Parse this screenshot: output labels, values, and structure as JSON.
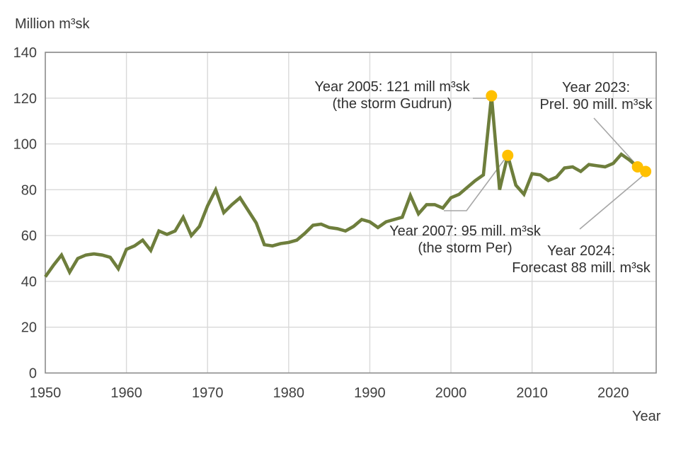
{
  "title": "Million m³sk",
  "x_axis_title": "Year",
  "annotations": {
    "a2005": {
      "line1": "Year 2005: 121 mill m³sk",
      "line2": "(the storm Gudrun)"
    },
    "a2023": {
      "line1": "Year 2023:",
      "line2": "Prel. 90 mill. m³sk"
    },
    "a2007": {
      "line1": "Year 2007: 95 mill. m³sk",
      "line2": "(the storm Per)"
    },
    "a2024": {
      "line1": "Year 2024:",
      "line2": "Forecast 88 mill. m³sk"
    }
  },
  "colors": {
    "line": "#6E7E3C",
    "marker": "#FFC000",
    "grid": "#D9D9D9",
    "border": "#8C8C8C",
    "leader": "#A6A6A6",
    "text": "#404040"
  },
  "chart_data": {
    "type": "line",
    "title": "Million m³sk",
    "xlabel": "Year",
    "ylabel": "Million m³sk",
    "grid": true,
    "x_range": [
      1950,
      2025.3
    ],
    "y_range": [
      0,
      140
    ],
    "x_ticks": [
      1950,
      1960,
      1970,
      1980,
      1990,
      2000,
      2010,
      2020
    ],
    "y_ticks": [
      0,
      20,
      40,
      60,
      80,
      100,
      120,
      140
    ],
    "x": [
      1950,
      1951,
      1952,
      1953,
      1954,
      1955,
      1956,
      1957,
      1958,
      1959,
      1960,
      1961,
      1962,
      1963,
      1964,
      1965,
      1966,
      1967,
      1968,
      1969,
      1970,
      1971,
      1972,
      1973,
      1974,
      1975,
      1976,
      1977,
      1978,
      1979,
      1980,
      1981,
      1982,
      1983,
      1984,
      1985,
      1986,
      1987,
      1988,
      1989,
      1990,
      1991,
      1992,
      1993,
      1994,
      1995,
      1996,
      1997,
      1998,
      1999,
      2000,
      2001,
      2002,
      2003,
      2004,
      2005,
      2006,
      2007,
      2008,
      2009,
      2010,
      2011,
      2012,
      2013,
      2014,
      2015,
      2016,
      2017,
      2018,
      2019,
      2020,
      2021,
      2022,
      2023,
      2024
    ],
    "values": [
      42,
      47,
      51.5,
      44,
      50,
      51.5,
      52,
      51.5,
      50.5,
      45.5,
      54,
      55.5,
      58,
      53.5,
      62,
      60.5,
      62,
      68,
      60,
      64,
      73,
      80,
      70,
      73.5,
      76.5,
      71,
      65.5,
      56,
      55.5,
      56.5,
      57,
      58,
      61,
      64.5,
      65,
      63.5,
      63,
      62,
      64,
      67,
      66,
      63.5,
      66,
      67,
      68,
      77.5,
      69.5,
      73.5,
      73.5,
      72,
      76.5,
      78,
      81,
      84,
      86.5,
      121,
      80,
      95,
      82,
      78,
      87,
      86.5,
      84,
      85.5,
      89.5,
      90,
      88,
      91,
      90.5,
      90,
      91.5,
      95.5,
      93,
      90,
      88
    ],
    "highlight_points": [
      {
        "year": 2005,
        "value": 121,
        "note": "the storm Gudrun"
      },
      {
        "year": 2007,
        "value": 95,
        "note": "the storm Per"
      },
      {
        "year": 2023,
        "value": 90,
        "note": "preliminary"
      },
      {
        "year": 2024,
        "value": 88,
        "note": "forecast"
      }
    ]
  }
}
